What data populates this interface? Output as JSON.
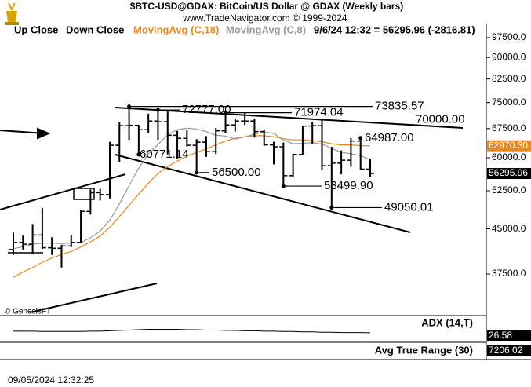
{
  "chart_data": {
    "type": "ohlc",
    "title": "$BTC-USD@GDAX:  BitCoin/US Dollar @ GDAX  (Weekly bars)",
    "subtitle": "www.TradeNavigator.com © 1999-2024",
    "legend": [
      "Up Close",
      "Down Close"
    ],
    "quote": "9/6/24 12:32 = 56295.96 (-2816.81)",
    "log_scale": true,
    "ylim": [
      32000,
      110000
    ],
    "yticks": [
      {
        "value": 97500,
        "label": "97500.0"
      },
      {
        "value": 90000,
        "label": "90000.0"
      },
      {
        "value": 82500,
        "label": "82500.0"
      },
      {
        "value": 75000,
        "label": "75000.0"
      },
      {
        "value": 67500,
        "label": "67500.0"
      },
      {
        "value": 60000,
        "label": "60000.0"
      },
      {
        "value": 52500,
        "label": "52500.0"
      },
      {
        "value": 45000,
        "label": "45000.0"
      },
      {
        "value": 37500,
        "label": "37500.0"
      }
    ],
    "bar_color": "#000000",
    "ohlc": {
      "open": [
        41400,
        42600,
        42300,
        43900,
        41700,
        41600,
        42000,
        42600,
        48300,
        52100,
        51700,
        63100,
        68300,
        68400,
        67200,
        69600,
        69400,
        65700,
        64900,
        63100,
        63900,
        61500,
        66900,
        68500,
        69600,
        69600,
        66700,
        63200,
        62700,
        55800,
        60800,
        68200,
        68300,
        58100,
        58700,
        59400,
        64200,
        57300
      ],
      "high": [
        44300,
        43800,
        45900,
        49000,
        43500,
        42200,
        43900,
        48600,
        52800,
        52900,
        64000,
        69200,
        73835.57,
        68500,
        71700,
        72777,
        72800,
        66900,
        67200,
        64700,
        65500,
        67700,
        71974.04,
        70200,
        71900,
        70200,
        67200,
        64000,
        63800,
        61000,
        68300,
        69300,
        69900,
        62700,
        61800,
        65000,
        64987,
        59800
      ],
      "low": [
        40500,
        41400,
        40700,
        41500,
        40500,
        38500,
        41800,
        42500,
        47700,
        50500,
        50900,
        59000,
        64500,
        60771.14,
        66400,
        64500,
        60800,
        59700,
        62800,
        56500,
        60200,
        60900,
        66300,
        66700,
        68500,
        65100,
        63000,
        58400,
        53499.9,
        55600,
        60600,
        63500,
        57100,
        49050.01,
        56100,
        57800,
        57200,
        55600
      ],
      "close": [
        42600,
        42300,
        43900,
        41700,
        41600,
        42000,
        42600,
        48300,
        52100,
        51700,
        63100,
        68300,
        68400,
        67200,
        69600,
        69400,
        65700,
        64900,
        63100,
        63900,
        61500,
        66900,
        68500,
        69600,
        69600,
        66700,
        63200,
        62700,
        55800,
        60800,
        68200,
        68300,
        58100,
        58700,
        59400,
        64200,
        57300,
        56295.96
      ]
    },
    "series": [
      {
        "name": "MovingAvg (C,18)",
        "color": "#e8871e",
        "values": [
          37000,
          37800,
          38500,
          39300,
          40000,
          40600,
          41100,
          41800,
          42700,
          43700,
          45300,
          47300,
          49500,
          51800,
          54100,
          56300,
          57900,
          59200,
          60400,
          61300,
          62200,
          63200,
          64200,
          64900,
          65300,
          65600,
          65600,
          65300,
          64800,
          64500,
          64500,
          64300,
          64000,
          63500,
          63200,
          63200,
          63000,
          62970.3
        ]
      },
      {
        "name": "MovingAvg (C,8)",
        "color": "#9a9a9a",
        "values": [
          41500,
          41900,
          42300,
          42500,
          42500,
          42400,
          42500,
          42600,
          43400,
          44600,
          46600,
          49800,
          53600,
          57500,
          61000,
          63300,
          65800,
          67200,
          67600,
          67400,
          66700,
          65700,
          65500,
          64700,
          65300,
          66000,
          66600,
          66200,
          64500,
          63500,
          63600,
          63800,
          63400,
          62300,
          61300,
          61000,
          60500,
          59500
        ]
      }
    ],
    "annotations": [
      {
        "value": 73835.57,
        "label": "73835.57"
      },
      {
        "value": 72777,
        "label": "72777.00"
      },
      {
        "value": 71974.04,
        "label": "71974.04"
      },
      {
        "value": 70000,
        "label": "70000.00"
      },
      {
        "value": 64987,
        "label": "64987.00"
      },
      {
        "value": 60771.14,
        "label": "60771.14"
      },
      {
        "value": 56500,
        "label": "56500.00"
      },
      {
        "value": 53499.9,
        "label": "53499.90"
      },
      {
        "value": 49050.01,
        "label": "49050.01"
      }
    ],
    "last_labels": [
      {
        "value": 62970.3,
        "label": "62970.30",
        "color": "#e8871e"
      },
      {
        "value": 56295.96,
        "label": "56295.96",
        "color": "#000000"
      }
    ],
    "credit": "© GenesisFT",
    "adx": {
      "name": "ADX (14,T)",
      "ylim": [
        0,
        70
      ],
      "value": 26.58,
      "values": [
        31,
        31,
        31,
        30,
        30,
        30,
        30,
        30,
        31,
        31,
        32,
        33,
        34,
        35,
        36,
        36,
        36,
        36,
        35,
        35,
        34,
        34,
        33,
        33,
        32,
        32,
        31,
        31,
        30,
        30,
        29,
        29,
        28,
        28,
        27,
        27,
        27,
        26.58
      ]
    },
    "atr": {
      "name": "Avg True Range (30)",
      "value": 7206.02
    },
    "timestamp": "09/05/2024 12:32:25"
  }
}
